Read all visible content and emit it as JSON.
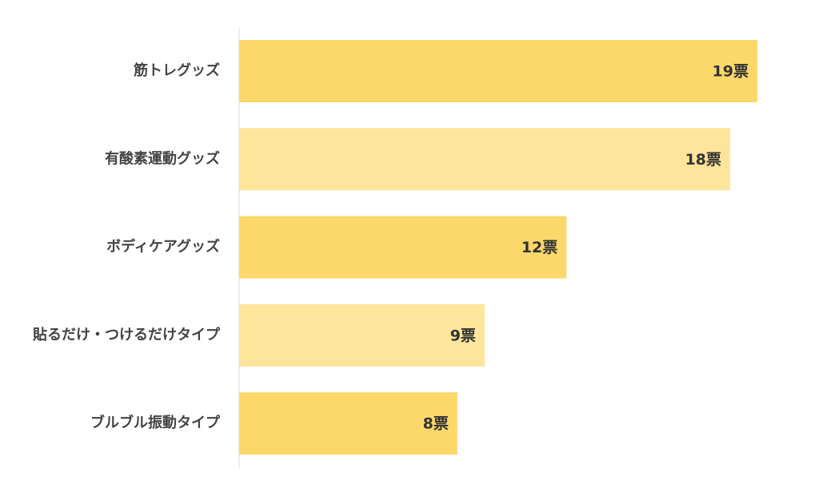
{
  "chart_data": {
    "type": "bar",
    "orientation": "horizontal",
    "categories": [
      "筋トレグッズ",
      "有酸素運動グッズ",
      "ボディケアグッズ",
      "貼るだけ・つけるだけタイプ",
      "ブルブル振動タイプ"
    ],
    "values": [
      19,
      18,
      12,
      9,
      8
    ],
    "value_labels": [
      "19票",
      "18票",
      "12票",
      "9票",
      "8票"
    ],
    "colors": [
      "#fcd76a",
      "#fde59b",
      "#fcd76a",
      "#fde59b",
      "#fcd76a"
    ]
  }
}
